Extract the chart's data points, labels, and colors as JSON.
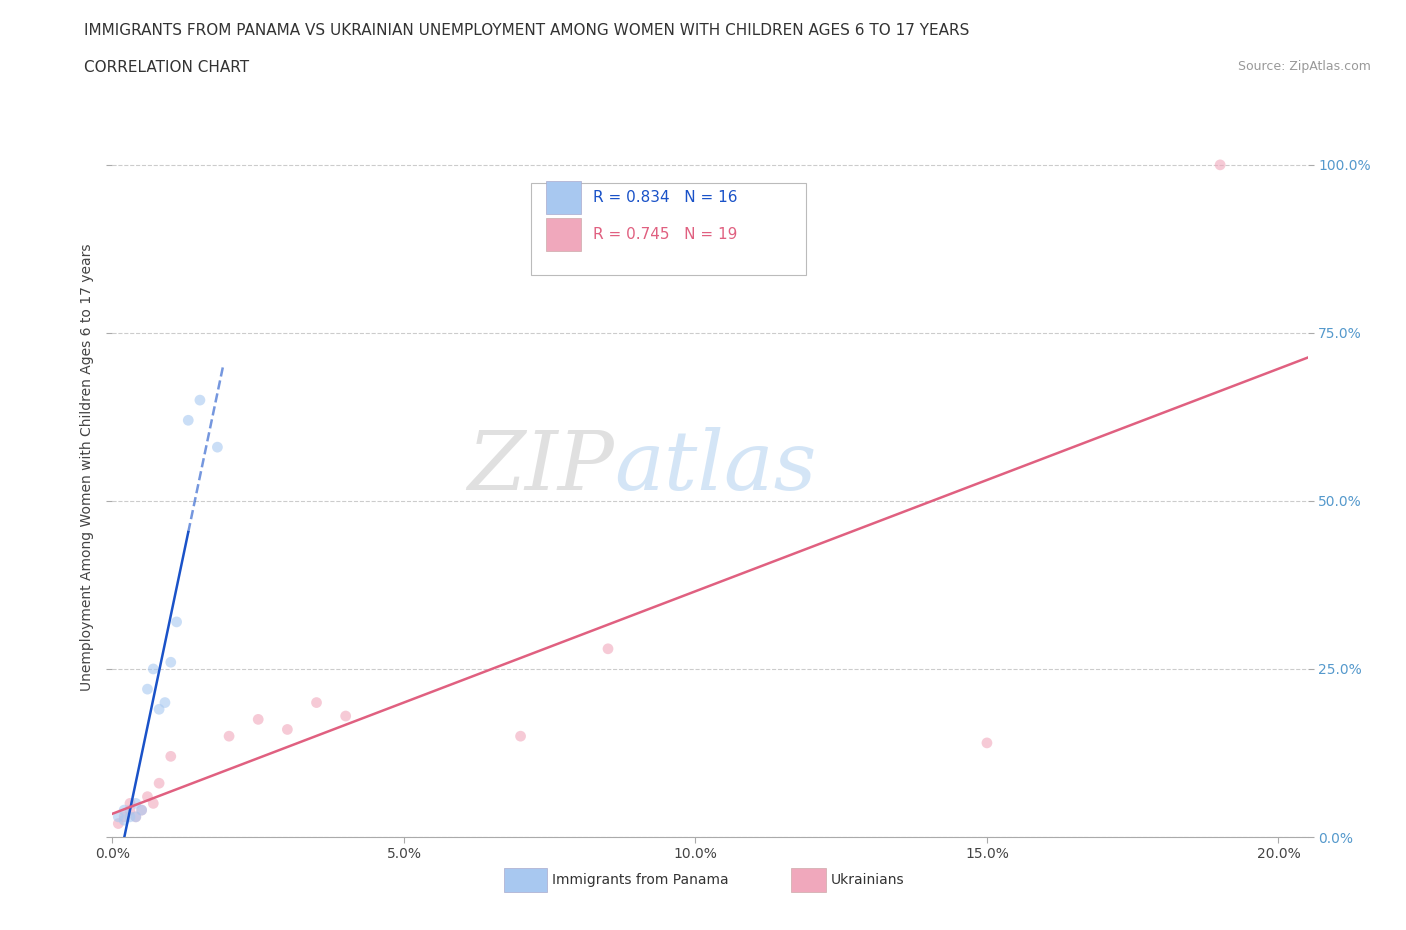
{
  "title_line1": "IMMIGRANTS FROM PANAMA VS UKRAINIAN UNEMPLOYMENT AMONG WOMEN WITH CHILDREN AGES 6 TO 17 YEARS",
  "title_line2": "CORRELATION CHART",
  "source_text": "Source: ZipAtlas.com",
  "ylabel": "Unemployment Among Women with Children Ages 6 to 17 years",
  "watermark_zip": "ZIP",
  "watermark_atlas": "atlas",
  "panama_color": "#A8C8F0",
  "ukraine_color": "#F0A8BC",
  "panama_line_color": "#1A52C8",
  "ukraine_line_color": "#E06080",
  "panama_R": "R = 0.834",
  "panama_N": "N = 16",
  "ukraine_R": "R = 0.745",
  "ukraine_N": "N = 19",
  "panama_scatter_x": [
    0.001,
    0.002,
    0.002,
    0.003,
    0.004,
    0.004,
    0.005,
    0.006,
    0.007,
    0.008,
    0.009,
    0.01,
    0.011,
    0.013,
    0.015,
    0.018
  ],
  "panama_scatter_y": [
    0.03,
    0.04,
    0.025,
    0.03,
    0.05,
    0.03,
    0.04,
    0.22,
    0.25,
    0.19,
    0.2,
    0.26,
    0.32,
    0.62,
    0.65,
    0.58
  ],
  "ukraine_scatter_x": [
    0.001,
    0.002,
    0.003,
    0.003,
    0.004,
    0.005,
    0.006,
    0.007,
    0.008,
    0.01,
    0.02,
    0.025,
    0.03,
    0.035,
    0.04,
    0.07,
    0.085,
    0.15,
    0.19
  ],
  "ukraine_scatter_y": [
    0.02,
    0.03,
    0.04,
    0.05,
    0.03,
    0.04,
    0.06,
    0.05,
    0.08,
    0.12,
    0.15,
    0.175,
    0.16,
    0.2,
    0.18,
    0.15,
    0.28,
    0.14,
    1.0
  ],
  "xlim": [
    0.0,
    0.205
  ],
  "ylim": [
    0.0,
    1.1
  ],
  "xtick_vals": [
    0.0,
    0.05,
    0.1,
    0.15,
    0.2
  ],
  "xticklabels": [
    "0.0%",
    "5.0%",
    "10.0%",
    "15.0%",
    "20.0%"
  ],
  "ytick_vals": [
    0.0,
    0.25,
    0.5,
    0.75,
    1.0
  ],
  "yticklabels_right": [
    "0.0%",
    "25.0%",
    "50.0%",
    "75.0%",
    "100.0%"
  ],
  "grid_color": "#CCCCCC",
  "background_color": "#FFFFFF",
  "title_fontsize": 11,
  "tick_fontsize": 10,
  "legend_fontsize": 11,
  "ylabel_fontsize": 10,
  "dot_size": 60,
  "dot_alpha": 0.6,
  "line_width": 1.8,
  "panama_line_xmax": 0.019,
  "ukraine_line_xmax": 0.205
}
